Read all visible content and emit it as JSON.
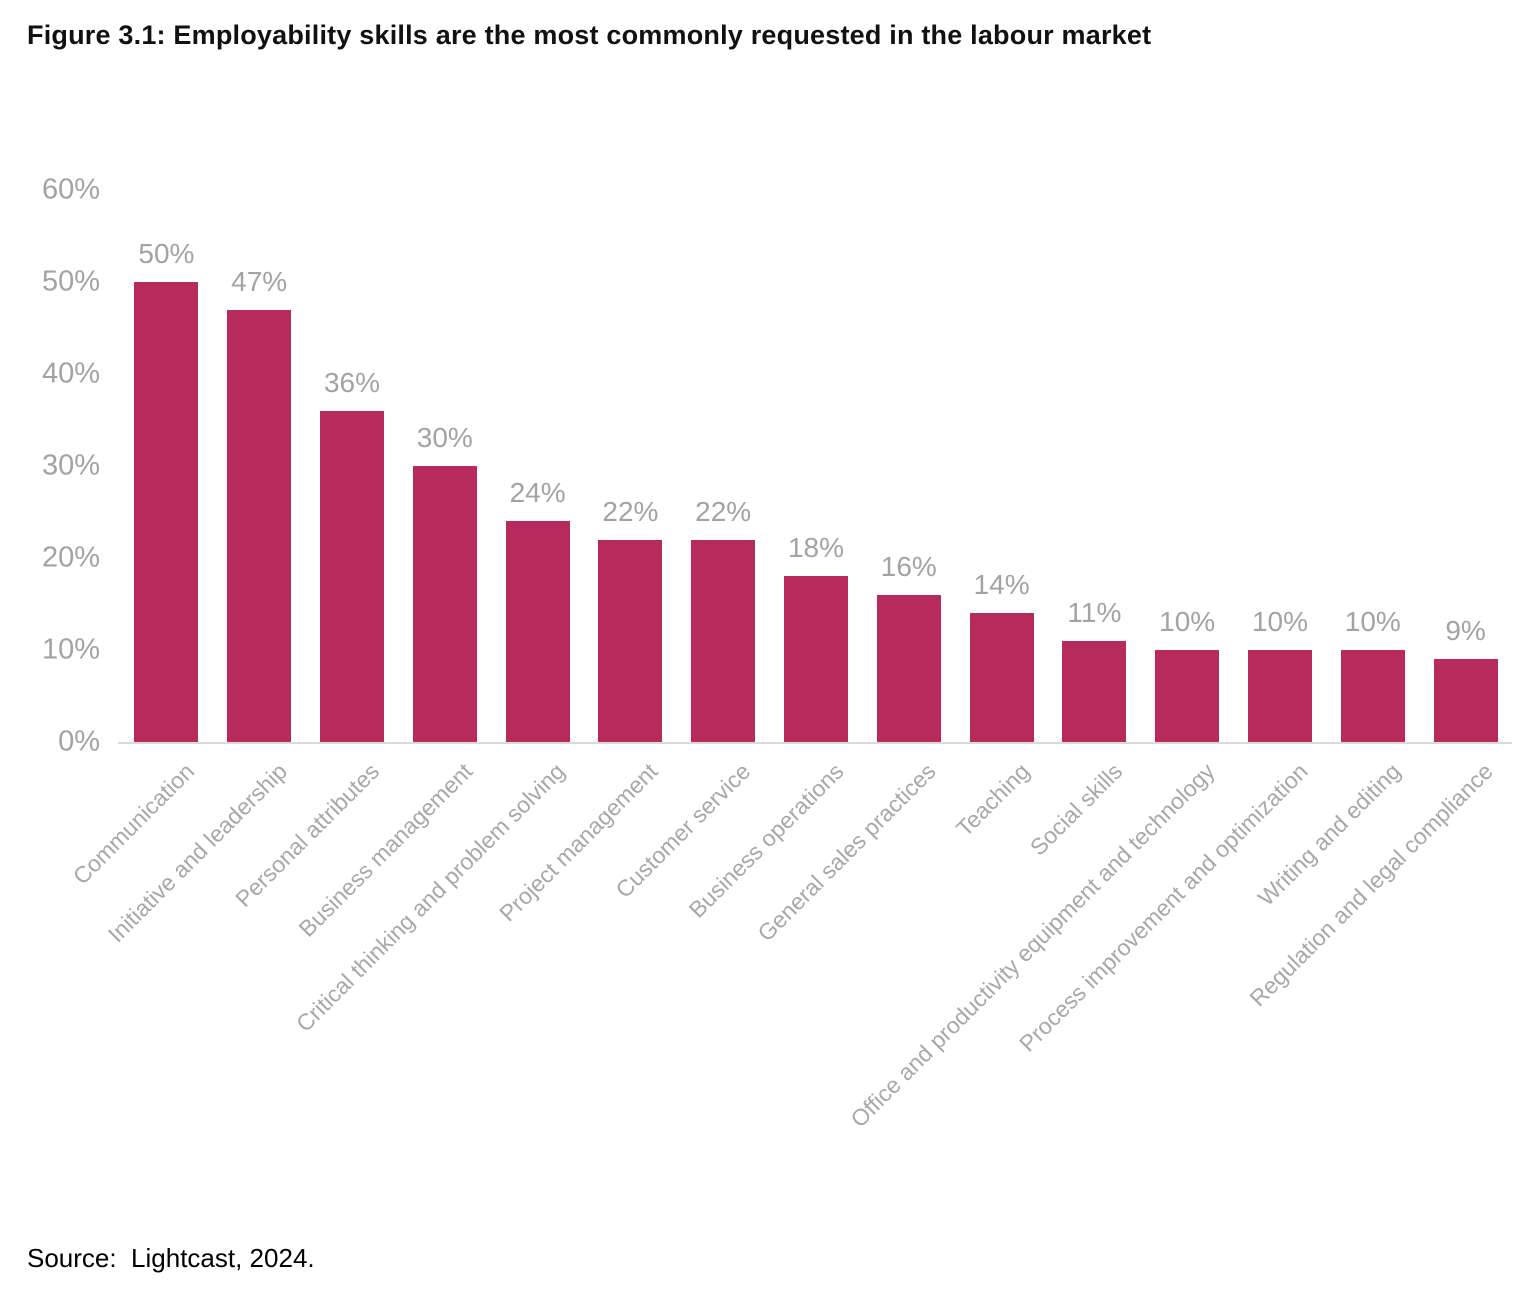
{
  "figure": {
    "title": "Figure 3.1: Employability skills are the most commonly requested in the labour market",
    "source": "Source:  Lightcast, 2024."
  },
  "colors": {
    "bar": "#b62a5e",
    "tick_label": "#a3a3a3",
    "data_label": "#a3a3a3",
    "category_label": "#a8a8a8",
    "baseline": "#d9d9d9",
    "title_text": "#111111"
  },
  "chart_data": {
    "type": "bar",
    "title": "Figure 3.1: Employability skills are the most commonly requested in the labour market",
    "categories": [
      "Communication",
      "Initiative and leadership",
      "Personal attributes",
      "Business management",
      "Critical thinking and problem solving",
      "Project management",
      "Customer service",
      "Business operations",
      "General sales practices",
      "Teaching",
      "Social skills",
      "Office and productivity equipment and technology",
      "Process improvement and optimization",
      "Writing and editing",
      "Regulation and legal compliance"
    ],
    "values": [
      50,
      47,
      36,
      30,
      24,
      22,
      22,
      18,
      16,
      14,
      11,
      10,
      10,
      10,
      9
    ],
    "data_labels": [
      "50%",
      "47%",
      "36%",
      "30%",
      "24%",
      "22%",
      "22%",
      "18%",
      "16%",
      "14%",
      "11%",
      "10%",
      "10%",
      "10%",
      "9%"
    ],
    "xlabel": "",
    "ylabel": "",
    "ylim": [
      0,
      60
    ],
    "ytick_step": 10,
    "yticks": [
      "0%",
      "10%",
      "20%",
      "30%",
      "40%",
      "50%",
      "60%"
    ],
    "grid": false,
    "legend": "none",
    "bar_color": "#b62a5e"
  }
}
